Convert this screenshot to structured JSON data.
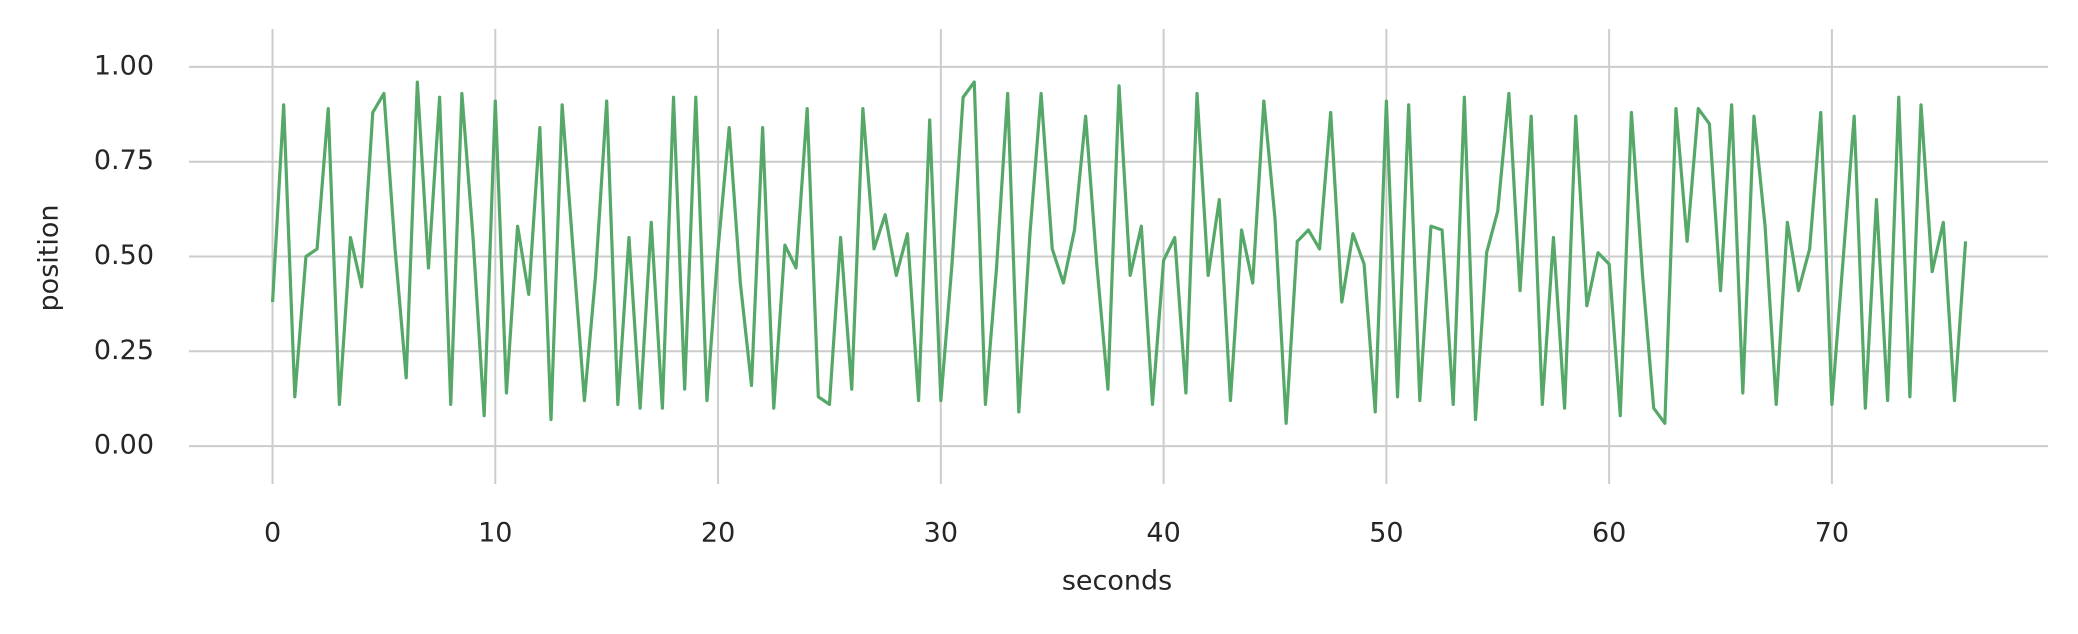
{
  "chart_data": {
    "type": "line",
    "x_label": "seconds",
    "y_label": "position",
    "x": [
      0,
      0.5,
      1,
      1.5,
      2,
      2.5,
      3,
      3.5,
      4,
      4.5,
      5,
      5.5,
      6,
      6.5,
      7,
      7.5,
      8,
      8.5,
      9,
      9.5,
      10,
      10.5,
      11,
      11.5,
      12,
      12.5,
      13,
      13.5,
      14,
      14.5,
      15,
      15.5,
      16,
      16.5,
      17,
      17.5,
      18,
      18.5,
      19,
      19.5,
      20,
      20.5,
      21,
      21.5,
      22,
      22.5,
      23,
      23.5,
      24,
      24.5,
      25,
      25.5,
      26,
      26.5,
      27,
      27.5,
      28,
      28.5,
      29,
      29.5,
      30,
      30.5,
      31,
      31.5,
      32,
      32.5,
      33,
      33.5,
      34,
      34.5,
      35,
      35.5,
      36,
      36.5,
      37,
      37.5,
      38,
      38.5,
      39,
      39.5,
      40,
      40.5,
      41,
      41.5,
      42,
      42.5,
      43,
      43.5,
      44,
      44.5,
      45,
      45.5,
      46,
      46.5,
      47,
      47.5,
      48,
      48.5,
      49,
      49.5,
      50,
      50.5,
      51,
      51.5,
      52,
      52.5,
      53,
      53.5,
      54,
      54.5,
      55,
      55.5,
      56,
      56.5,
      57,
      57.5,
      58,
      58.5,
      59,
      59.5,
      60,
      60.5,
      61,
      61.5,
      62,
      62.5,
      63,
      63.5,
      64,
      64.5,
      65,
      65.5,
      66,
      66.5,
      67,
      67.5,
      68,
      68.5,
      69,
      69.5,
      70,
      70.5,
      71,
      71.5,
      72,
      72.5,
      73,
      73.5,
      74,
      74.5,
      75,
      75.5,
      76
    ],
    "series": [
      {
        "color": "#55a868",
        "values": [
          0.38,
          0.9,
          0.13,
          0.5,
          0.52,
          0.89,
          0.11,
          0.55,
          0.42,
          0.88,
          0.93,
          0.52,
          0.18,
          0.96,
          0.47,
          0.92,
          0.11,
          0.93,
          0.55,
          0.08,
          0.91,
          0.14,
          0.58,
          0.4,
          0.84,
          0.07,
          0.9,
          0.51,
          0.12,
          0.45,
          0.91,
          0.11,
          0.55,
          0.1,
          0.59,
          0.1,
          0.92,
          0.15,
          0.92,
          0.12,
          0.52,
          0.84,
          0.43,
          0.16,
          0.84,
          0.1,
          0.53,
          0.47,
          0.89,
          0.13,
          0.11,
          0.55,
          0.15,
          0.89,
          0.52,
          0.61,
          0.45,
          0.56,
          0.12,
          0.86,
          0.12,
          0.48,
          0.92,
          0.96,
          0.11,
          0.47,
          0.93,
          0.09,
          0.56,
          0.93,
          0.52,
          0.43,
          0.57,
          0.87,
          0.48,
          0.15,
          0.95,
          0.45,
          0.58,
          0.11,
          0.49,
          0.55,
          0.14,
          0.93,
          0.45,
          0.65,
          0.12,
          0.57,
          0.43,
          0.91,
          0.6,
          0.06,
          0.54,
          0.57,
          0.52,
          0.88,
          0.38,
          0.56,
          0.48,
          0.09,
          0.91,
          0.13,
          0.9,
          0.12,
          0.58,
          0.57,
          0.11,
          0.92,
          0.07,
          0.51,
          0.62,
          0.93,
          0.41,
          0.87,
          0.11,
          0.55,
          0.1,
          0.87,
          0.37,
          0.51,
          0.48,
          0.08,
          0.88,
          0.45,
          0.1,
          0.06,
          0.89,
          0.54,
          0.89,
          0.85,
          0.41,
          0.9,
          0.14,
          0.87,
          0.58,
          0.11,
          0.59,
          0.41,
          0.52,
          0.88,
          0.11,
          0.49,
          0.87,
          0.1,
          0.65,
          0.12,
          0.92,
          0.13,
          0.9,
          0.46,
          0.59,
          0.12,
          0.54
        ]
      }
    ],
    "xlim": [
      -3.75,
      79.7
    ],
    "ylim": [
      -0.1,
      1.1
    ],
    "xticks": [
      0,
      10,
      20,
      30,
      40,
      50,
      60,
      70
    ],
    "yticks": [
      {
        "value": 0,
        "label": "0.00"
      },
      {
        "value": 0.25,
        "label": "0.25"
      },
      {
        "value": 0.5,
        "label": "0.50"
      },
      {
        "value": 0.75,
        "label": "0.75"
      },
      {
        "value": 1,
        "label": "1.00"
      }
    ],
    "grid": true
  }
}
